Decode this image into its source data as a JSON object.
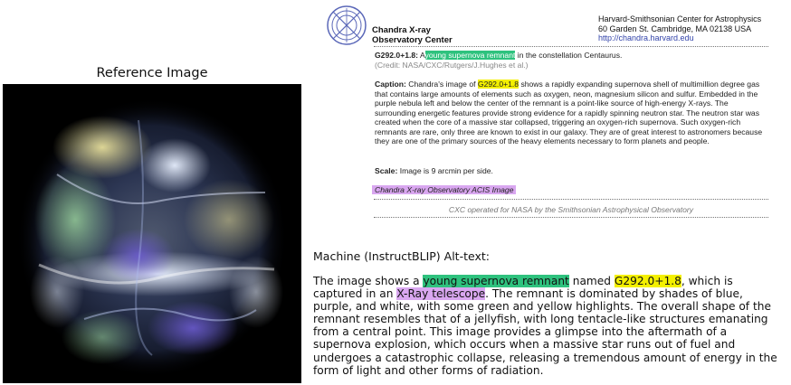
{
  "reference": {
    "title": "Reference Image"
  },
  "header": {
    "logo_icon": "chandra-logo-icon",
    "org_line1": "Chandra X-ray",
    "org_line2": "Observatory Center",
    "address_line1": "Harvard-Smithsonian Center for Astrophysics",
    "address_line2": "60 Garden St. Cambridge, MA 02138 USA",
    "url": "http://chandra.harvard.edu"
  },
  "document": {
    "object_name": "G292.0+1.8:",
    "object_pre": "A",
    "object_highlight": "young supernova remnant",
    "object_post": "in the constellation Centaurus.",
    "credit": "(Credit: NASA/CXC/Rutgers/J.Hughes et al.)",
    "caption_label": "Caption:",
    "caption_pre": "Chandra's image of",
    "caption_highlight": "G292.0+1.8",
    "caption_post": "shows a rapidly expanding supernova shell of multimillion degree gas that contains large amounts of elements such as oxygen, neon, magnesium silicon and sulfur. Embedded in the purple nebula left and below the center of the remnant is a point-like source of high-energy X-rays. The surrounding energetic features provide strong evidence for a rapidly spinning neutron star. The neutron star was created when the core of a massive star collapsed, triggering an oxygen-rich supernova. Such oxygen-rich remnants are rare, only three are known to exist in our galaxy. They are of great interest to astronomers because they are one of the primary sources of the heavy elements necessary to form planets and people.",
    "scale_label": "Scale:",
    "scale_text": "Image is 9 arcmin per side.",
    "instrument": "Chandra X-ray Observatory ACIS Image",
    "footer": "CXC operated for NASA by the Smithsonian Astrophysical Observatory"
  },
  "alt_text": {
    "title": "Machine (InstructBLIP) Alt-text:",
    "p1": "The image shows a",
    "hl1": "young supernova remnant",
    "p2": "named",
    "hl2": "G292.0+1.8",
    "p3": ", which is captured in an",
    "hl3": "X-Ray telescope",
    "p4": ". The remnant is dominated by shades of blue, purple, and white, with some green and yellow highlights. The overall shape of the remnant resembles that of a jellyfish, with long tentacle-like structures emanating from a central point. This image provides a glimpse into the aftermath of a supernova explosion, which occurs when a massive star runs out of fuel and undergoes a catastrophic collapse, releasing a tremendous amount of energy in the form of light and other forms of radiation."
  },
  "colors": {
    "highlight_green": "#2ec27e",
    "highlight_yellow": "#f4f000",
    "highlight_purple": "#d9a7f0",
    "url_blue": "#3344aa"
  }
}
